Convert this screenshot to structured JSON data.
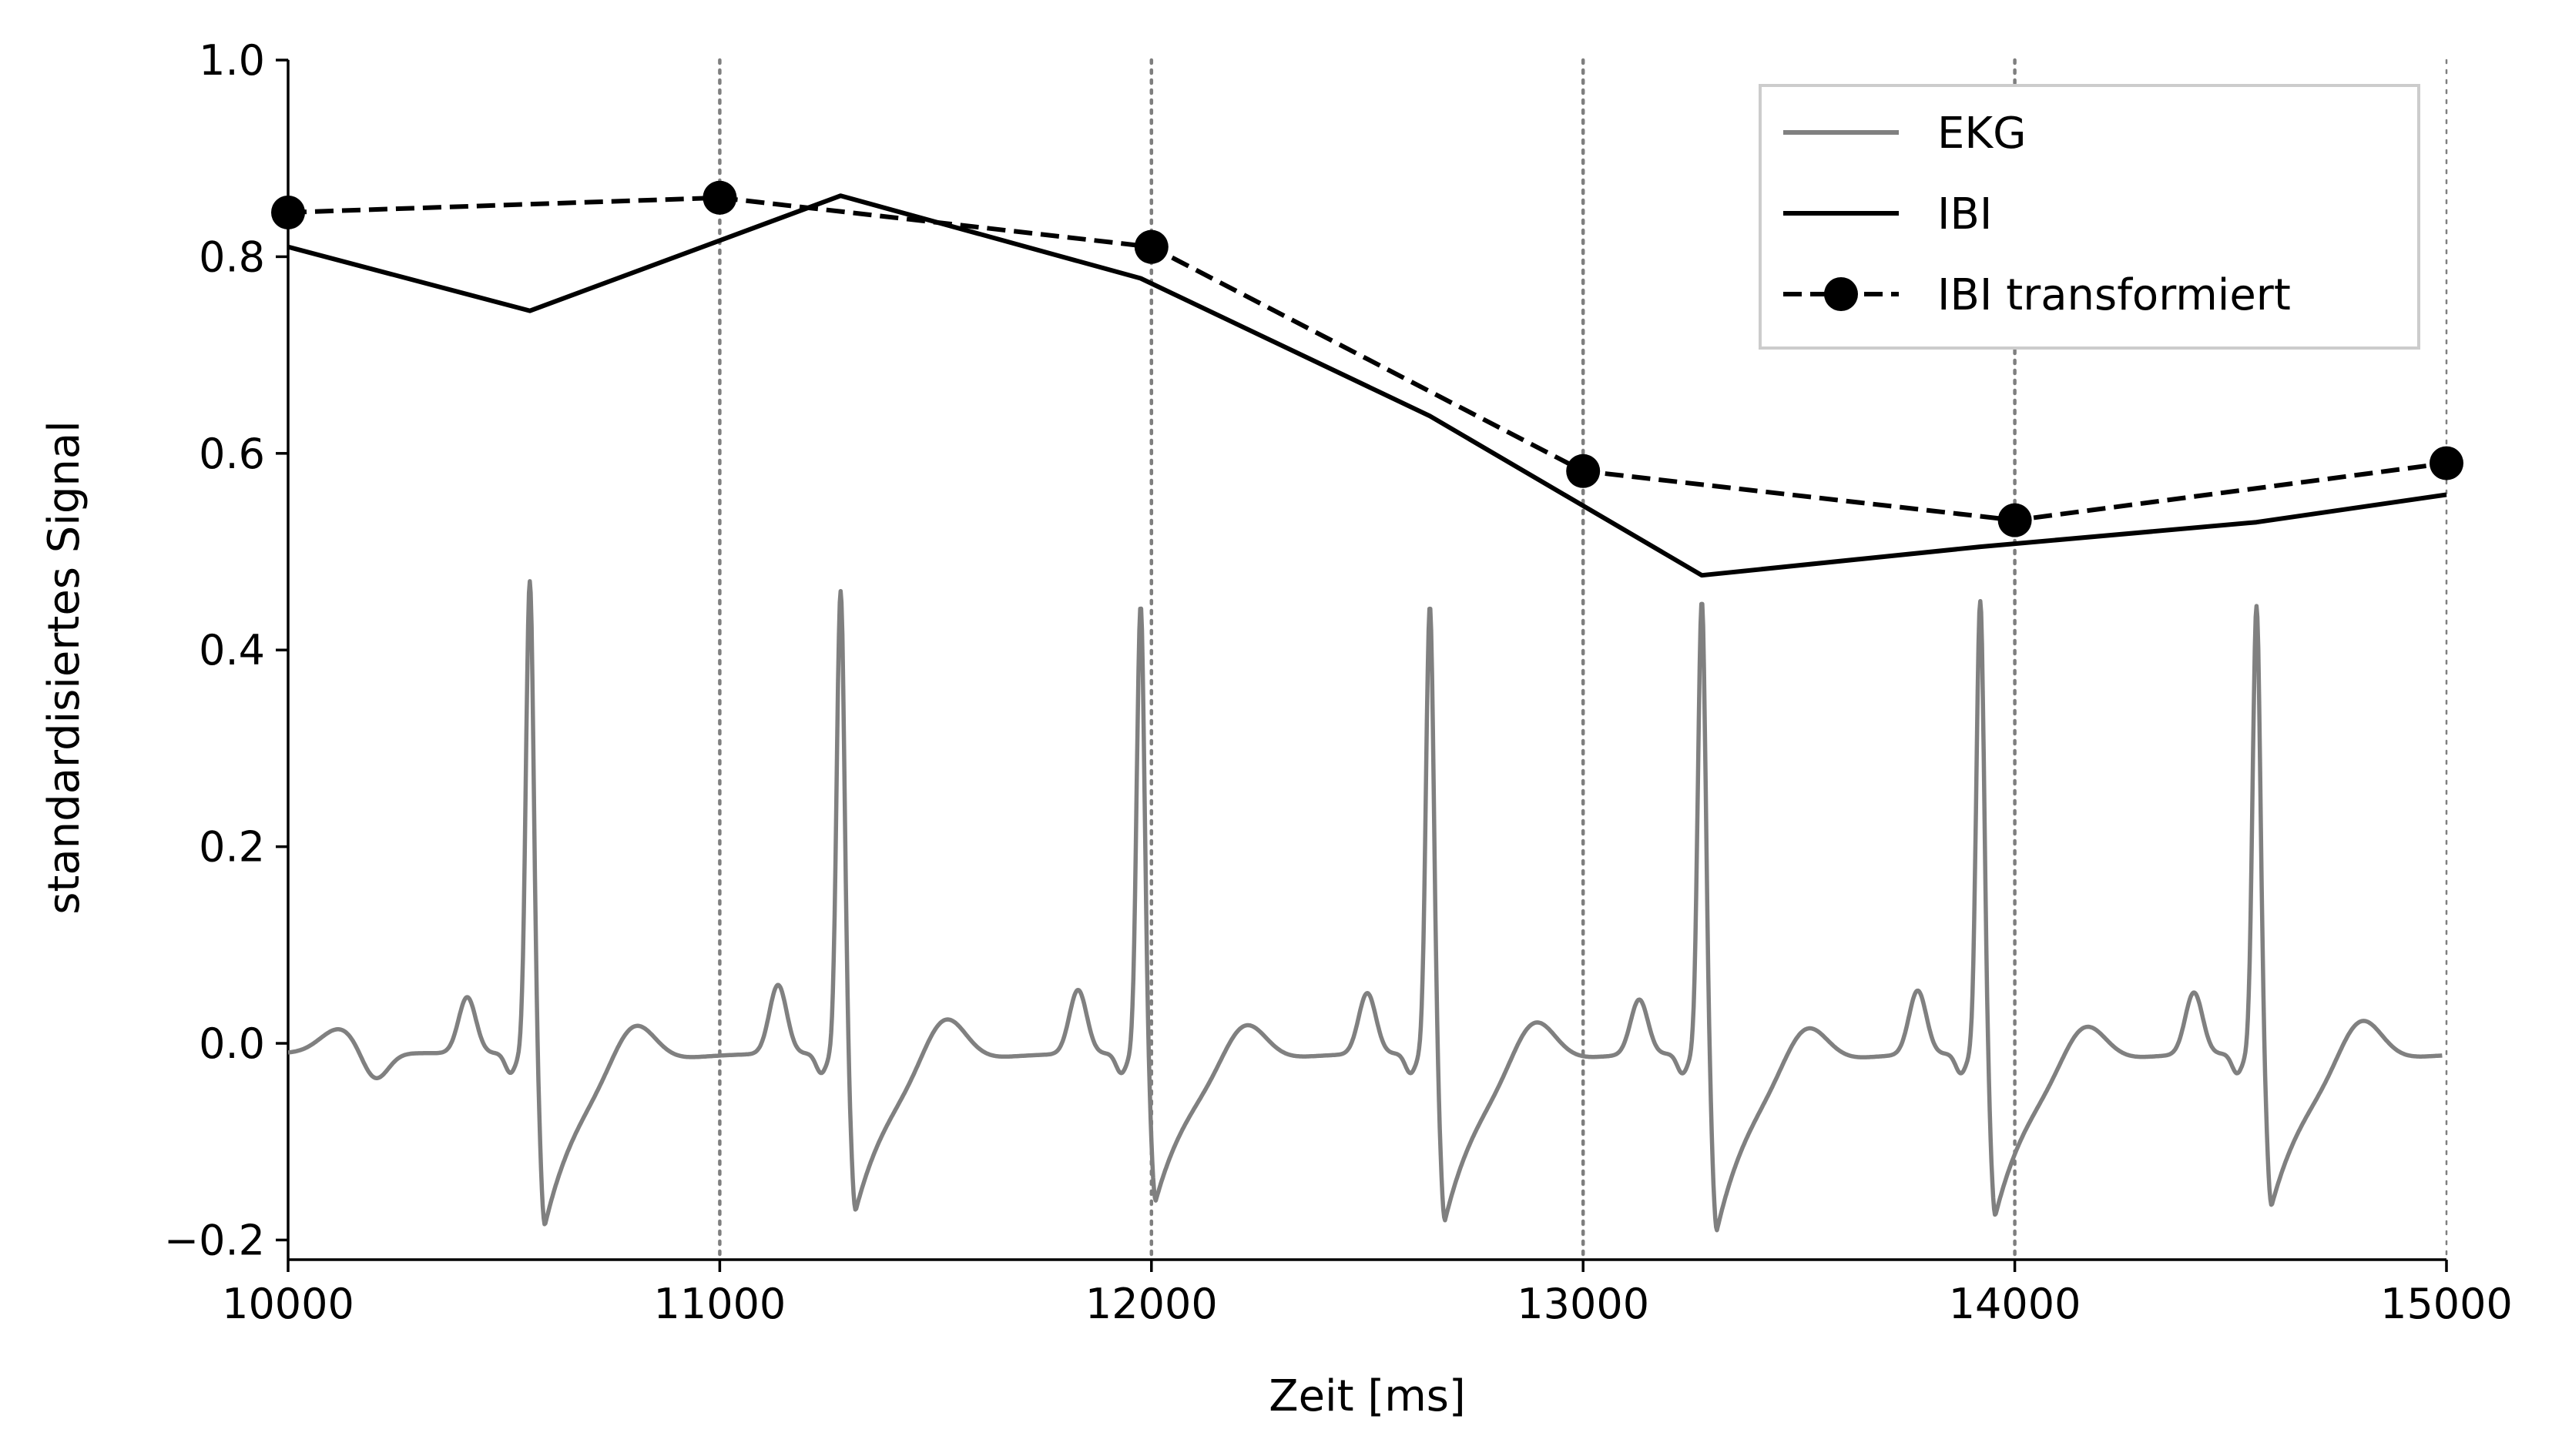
{
  "chart_data": {
    "type": "line",
    "title": "",
    "xlabel": "Zeit [ms]",
    "ylabel": "standardisiertes Signal",
    "xlim": [
      10000,
      15000
    ],
    "ylim": [
      -0.22,
      1.0
    ],
    "xticks": [
      10000,
      11000,
      12000,
      13000,
      14000,
      15000
    ],
    "xtick_labels": [
      "10000",
      "11000",
      "12000",
      "13000",
      "14000",
      "15000"
    ],
    "yticks": [
      -0.2,
      0.0,
      0.2,
      0.4,
      0.6,
      0.8,
      1.0
    ],
    "ytick_labels": [
      "−0.2",
      "0.0",
      "0.2",
      "0.4",
      "0.6",
      "0.8",
      "1.0"
    ],
    "vertical_gridlines_at": [
      10000,
      11000,
      12000,
      13000,
      14000,
      15000
    ],
    "grid": "vertical dotted lines at x ticks",
    "legend_position": "top-right",
    "series": [
      {
        "name": "EKG",
        "style": "solid",
        "color": "#808080",
        "r_peaks_x": [
          10560,
          11280,
          11975,
          12645,
          13275,
          13920,
          14560
        ],
        "r_peak_values": [
          0.47,
          0.46,
          0.445,
          0.445,
          0.45,
          0.45,
          0.445
        ],
        "s_wave_values": [
          -0.185,
          -0.17,
          -0.16,
          -0.18,
          -0.19,
          -0.175,
          -0.165
        ],
        "p_wave_values": [
          0.047,
          0.06,
          0.055,
          0.052,
          0.046,
          0.055,
          0.053
        ],
        "t_wave_values": [
          0.025,
          0.037,
          0.042,
          0.035,
          0.04,
          0.035,
          0.035,
          0.04
        ],
        "baseline": -0.01
      },
      {
        "name": "IBI",
        "style": "solid",
        "color": "#000000",
        "x": [
          10000,
          10560,
          11280,
          11975,
          12645,
          13275,
          13920,
          14560,
          15000
        ],
        "y": [
          0.81,
          0.745,
          0.862,
          0.778,
          0.638,
          0.476,
          0.505,
          0.53,
          0.558
        ]
      },
      {
        "name": "IBI transformiert",
        "style": "dashed",
        "marker": "circle",
        "color": "#000000",
        "x": [
          10000,
          11000,
          12000,
          13000,
          14000,
          15000
        ],
        "y": [
          0.845,
          0.86,
          0.81,
          0.582,
          0.532,
          0.59
        ]
      }
    ]
  }
}
